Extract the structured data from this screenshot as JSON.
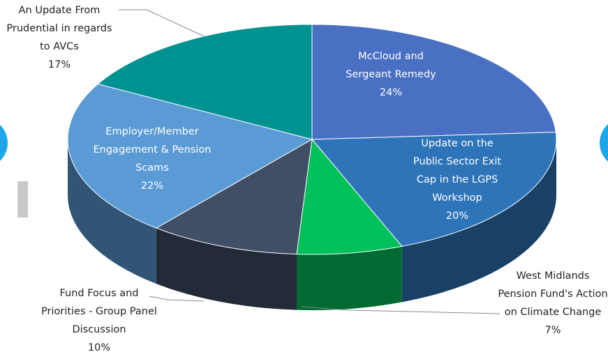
{
  "chart_data": {
    "type": "pie3d",
    "categories": [
      "McCloud and Sergeant Remedy",
      "Update on the Public Sector Exit Cap in the LGPS Workshop",
      "West Midlands Pension Fund's Action on Climate Change",
      "Fund Focus and Priorities - Group Panel Discussion",
      "Employer/Member Engagement & Pension Scams",
      "An Update From Prudential in regards to AVCs"
    ],
    "values": [
      24,
      20,
      7,
      10,
      22,
      17
    ],
    "value_labels": [
      "24%",
      "20%",
      "7%",
      "10%",
      "22%",
      "17%"
    ],
    "colors": [
      "#4a70c3",
      "#2e74b8",
      "#00c05a",
      "#404e66",
      "#5b9bd5",
      "#009191"
    ]
  }
}
